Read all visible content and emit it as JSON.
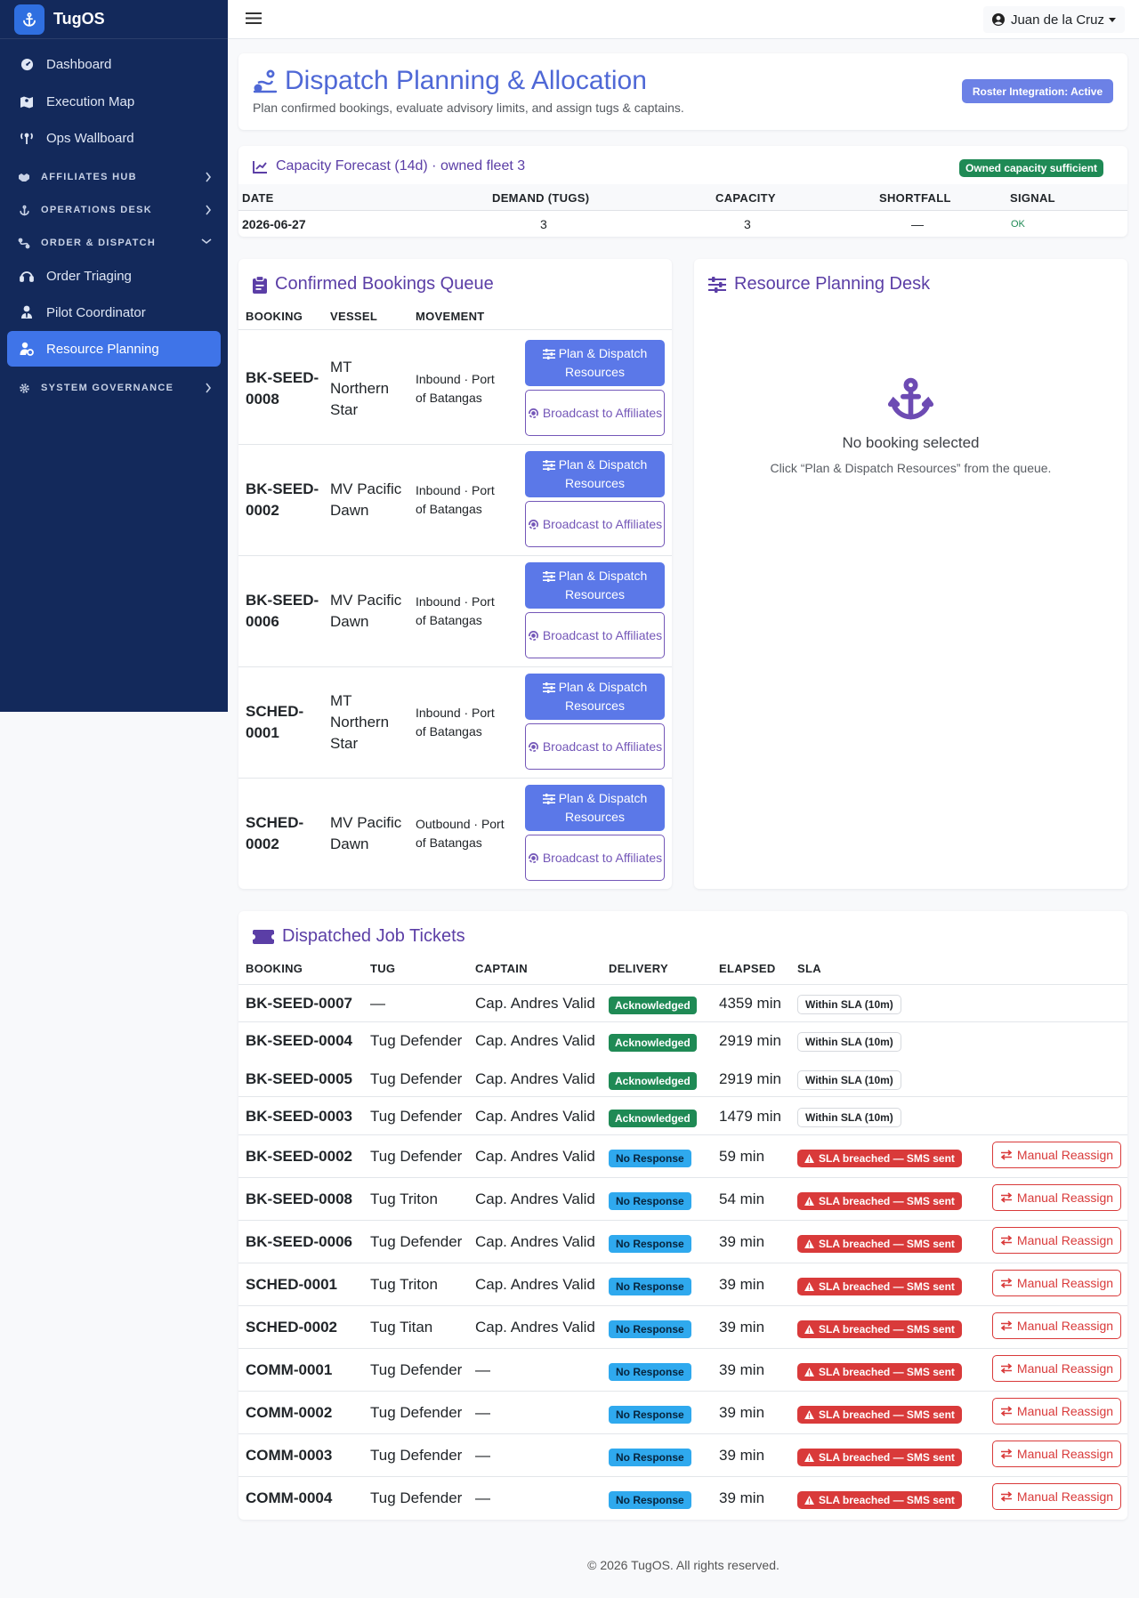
{
  "app": {
    "name": "TugOS"
  },
  "sidebar": {
    "top_items": [
      {
        "label": "Dashboard",
        "icon": "gauge-icon"
      },
      {
        "label": "Execution Map",
        "icon": "map-icon"
      },
      {
        "label": "Ops Wallboard",
        "icon": "broadcast-tower-icon"
      }
    ],
    "sections": [
      {
        "label": "AFFILIATES HUB",
        "icon": "handshake-icon",
        "expanded": false
      },
      {
        "label": "OPERATIONS DESK",
        "icon": "anchor-icon",
        "expanded": false
      },
      {
        "label": "ORDER & DISPATCH",
        "icon": "route-icon",
        "expanded": true
      },
      {
        "label": "SYSTEM GOVERNANCE",
        "icon": "gear-icon",
        "expanded": false
      }
    ],
    "order_dispatch_items": [
      {
        "label": "Order Triaging",
        "icon": "headset-icon"
      },
      {
        "label": "Pilot Coordinator",
        "icon": "user-tie-icon"
      },
      {
        "label": "Resource Planning",
        "icon": "user-gear-icon",
        "active": true
      }
    ]
  },
  "topbar": {
    "user": "Juan de la Cruz"
  },
  "header": {
    "title": "Dispatch Planning & Allocation",
    "subtitle": "Plan confirmed bookings, evaluate advisory limits, and assign tugs & captains.",
    "roster_status": "Roster Integration: Active"
  },
  "forecast": {
    "title": "Capacity Forecast (14d) · owned fleet 3",
    "badge": "Owned capacity sufficient",
    "columns": [
      "DATE",
      "DEMAND (TUGS)",
      "CAPACITY",
      "SHORTFALL",
      "SIGNAL"
    ],
    "rows": [
      {
        "date": "2026-06-27",
        "demand": "3",
        "capacity": "3",
        "shortfall": "—",
        "signal": "OK"
      }
    ]
  },
  "queue": {
    "title": "Confirmed Bookings Queue",
    "columns": [
      "BOOKING",
      "VESSEL",
      "MOVEMENT"
    ],
    "plan_label": "Plan & Dispatch Resources",
    "broadcast_label": "Broadcast to Affiliates",
    "rows": [
      {
        "booking_1": "BK-SEED-",
        "booking_2": "0008",
        "vessel": [
          "MT",
          "Northern",
          "Star"
        ],
        "movement_1": "Inbound · Port",
        "movement_2": "of Batangas"
      },
      {
        "booking_1": "BK-SEED-",
        "booking_2": "0002",
        "vessel": [
          "MV Pacific",
          "Dawn"
        ],
        "movement_1": "Inbound · Port",
        "movement_2": "of Batangas"
      },
      {
        "booking_1": "BK-SEED-",
        "booking_2": "0006",
        "vessel": [
          "MV Pacific",
          "Dawn"
        ],
        "movement_1": "Inbound · Port",
        "movement_2": "of Batangas"
      },
      {
        "booking_1": "SCHED-",
        "booking_2": "0001",
        "vessel": [
          "MT",
          "Northern",
          "Star"
        ],
        "movement_1": "Inbound · Port",
        "movement_2": "of Batangas"
      },
      {
        "booking_1": "SCHED-",
        "booking_2": "0002",
        "vessel": [
          "MV Pacific",
          "Dawn"
        ],
        "movement_1": "Outbound · Port",
        "movement_2": "of Batangas"
      }
    ]
  },
  "resource_desk": {
    "title": "Resource Planning Desk",
    "empty_title": "No booking selected",
    "empty_hint": "Click “Plan & Dispatch Resources” from the queue."
  },
  "tickets": {
    "title": "Dispatched Job Tickets",
    "columns": [
      "BOOKING",
      "TUG",
      "CAPTAIN",
      "DELIVERY",
      "ELAPSED",
      "SLA"
    ],
    "reassign_label": "Manual Reassign",
    "rows": [
      {
        "booking": "BK-SEED-0007",
        "tug": "—",
        "captain": "Cap. Andres Valid",
        "delivery": "Acknowledged",
        "elapsed": "4359 min",
        "sla": "Within SLA (10m)",
        "breached": false
      },
      {
        "booking": "BK-SEED-0004",
        "tug": "Tug Defender",
        "captain": "Cap. Andres Valid",
        "delivery": "Acknowledged",
        "elapsed": "2919 min",
        "sla": "Within SLA (10m)",
        "breached": false
      },
      {
        "booking": "BK-SEED-0005",
        "tug": "Tug Defender",
        "captain": "Cap. Andres Valid",
        "delivery": "Acknowledged",
        "elapsed": "2919 min",
        "sla": "Within SLA (10m)",
        "breached": false
      },
      {
        "booking": "BK-SEED-0003",
        "tug": "Tug Defender",
        "captain": "Cap. Andres Valid",
        "delivery": "Acknowledged",
        "elapsed": "1479 min",
        "sla": "Within SLA (10m)",
        "breached": false
      },
      {
        "booking": "BK-SEED-0002",
        "tug": "Tug Defender",
        "captain": "Cap. Andres Valid",
        "delivery": "No Response",
        "elapsed": "59 min",
        "sla": "SLA breached — SMS sent",
        "breached": true
      },
      {
        "booking": "BK-SEED-0008",
        "tug": "Tug Triton",
        "captain": "Cap. Andres Valid",
        "delivery": "No Response",
        "elapsed": "54 min",
        "sla": "SLA breached — SMS sent",
        "breached": true
      },
      {
        "booking": "BK-SEED-0006",
        "tug": "Tug Defender",
        "captain": "Cap. Andres Valid",
        "delivery": "No Response",
        "elapsed": "39 min",
        "sla": "SLA breached — SMS sent",
        "breached": true
      },
      {
        "booking": "SCHED-0001",
        "tug": "Tug Triton",
        "captain": "Cap. Andres Valid",
        "delivery": "No Response",
        "elapsed": "39 min",
        "sla": "SLA breached — SMS sent",
        "breached": true
      },
      {
        "booking": "SCHED-0002",
        "tug": "Tug Titan",
        "captain": "Cap. Andres Valid",
        "delivery": "No Response",
        "elapsed": "39 min",
        "sla": "SLA breached — SMS sent",
        "breached": true
      },
      {
        "booking": "COMM-0001",
        "tug": "Tug Defender",
        "captain": "—",
        "delivery": "No Response",
        "elapsed": "39 min",
        "sla": "SLA breached — SMS sent",
        "breached": true
      },
      {
        "booking": "COMM-0002",
        "tug": "Tug Defender",
        "captain": "—",
        "delivery": "No Response",
        "elapsed": "39 min",
        "sla": "SLA breached — SMS sent",
        "breached": true
      },
      {
        "booking": "COMM-0003",
        "tug": "Tug Defender",
        "captain": "—",
        "delivery": "No Response",
        "elapsed": "39 min",
        "sla": "SLA breached — SMS sent",
        "breached": true
      },
      {
        "booking": "COMM-0004",
        "tug": "Tug Defender",
        "captain": "—",
        "delivery": "No Response",
        "elapsed": "39 min",
        "sla": "SLA breached — SMS sent",
        "breached": true
      }
    ]
  },
  "footer": {
    "text": "© 2026 TugOS. All rights reserved."
  },
  "colors": {
    "sidebar_bg": "#13295b",
    "active_nav": "#3f74e8",
    "title_blue": "#4f68d6",
    "heading_purple": "#5b3ea6",
    "success": "#1f8a55",
    "info": "#2fa9ee",
    "danger": "#d93a3a"
  }
}
